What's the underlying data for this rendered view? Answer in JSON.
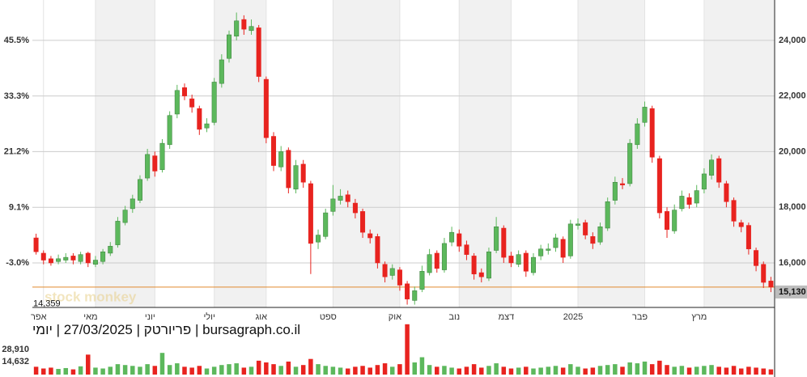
{
  "chart_data": {
    "type": "candlestick",
    "categories": [
      null,
      "אפר",
      null,
      null,
      null,
      null,
      null,
      null,
      "מאי",
      null,
      null,
      null,
      null,
      null,
      null,
      null,
      "יוני",
      null,
      null,
      null,
      null,
      null,
      null,
      null,
      "יולי",
      null,
      null,
      null,
      null,
      null,
      null,
      "אוג",
      null,
      null,
      null,
      null,
      null,
      null,
      null,
      null,
      "ספט",
      null,
      null,
      null,
      null,
      null,
      null,
      null,
      null,
      "אוק",
      null,
      null,
      null,
      null,
      null,
      null,
      null,
      "נוב",
      null,
      null,
      null,
      null,
      null,
      null,
      "דצמ",
      null,
      null,
      null,
      null,
      null,
      null,
      null,
      null,
      "2025",
      null,
      null,
      null,
      null,
      null,
      null,
      null,
      null,
      "פבר",
      null,
      null,
      null,
      null,
      null,
      null,
      null,
      "מרץ",
      null,
      null,
      null,
      null,
      null,
      null,
      null,
      null,
      null
    ],
    "open": [
      16900,
      16350,
      16150,
      16050,
      16100,
      16250,
      16050,
      16350,
      15950,
      16050,
      16350,
      16650,
      17450,
      17950,
      18250,
      19050,
      19850,
      19350,
      20250,
      21350,
      22300,
      21900,
      21550,
      20850,
      21050,
      22450,
      23350,
      24150,
      24750,
      24350,
      24450,
      22600,
      20550,
      19450,
      20050,
      18650,
      19550,
      18850,
      16750,
      16950,
      17850,
      18250,
      18450,
      18150,
      17850,
      17050,
      16950,
      15950,
      15550,
      15750,
      15250,
      14650,
      15050,
      15650,
      16350,
      15750,
      16750,
      17050,
      16650,
      16250,
      15650,
      15450,
      16450,
      17250,
      16250,
      15950,
      16350,
      15650,
      16250,
      16450,
      16550,
      16850,
      16250,
      17350,
      17450,
      16950,
      16750,
      17250,
      18250,
      18850,
      18850,
      20250,
      21050,
      21550,
      19750,
      17850,
      17150,
      17950,
      18350,
      18150,
      18650,
      19150,
      19750,
      18850,
      18250,
      17450,
      17350,
      16450,
      15950,
      15350
    ],
    "high": [
      17050,
      16450,
      16250,
      16300,
      16350,
      16350,
      16400,
      16400,
      16250,
      16500,
      16750,
      17650,
      18050,
      18450,
      19150,
      20100,
      20000,
      20450,
      21450,
      22400,
      22450,
      22050,
      21650,
      21200,
      22650,
      23500,
      24350,
      25000,
      24900,
      24750,
      24550,
      22700,
      20700,
      20200,
      20150,
      19700,
      19700,
      18950,
      17200,
      17950,
      18800,
      18650,
      18600,
      18300,
      17950,
      17200,
      17050,
      16050,
      15950,
      15850,
      15350,
      15150,
      15900,
      16500,
      16450,
      16900,
      17300,
      17200,
      16800,
      16350,
      15800,
      16550,
      17650,
      17350,
      16400,
      16450,
      16450,
      16350,
      16650,
      16700,
      17050,
      16950,
      17550,
      17600,
      17550,
      17100,
      17450,
      18350,
      19100,
      19050,
      20450,
      21200,
      21800,
      21650,
      19850,
      18000,
      18100,
      18600,
      18500,
      18800,
      19400,
      19900,
      19850,
      18950,
      18350,
      17550,
      17450,
      16550,
      16050,
      15500
    ],
    "low": [
      16300,
      15950,
      15900,
      15950,
      16000,
      15950,
      15950,
      15850,
      15850,
      15950,
      16250,
      16550,
      17350,
      17800,
      18150,
      18950,
      19100,
      19250,
      20100,
      21200,
      21850,
      21400,
      20600,
      20700,
      20950,
      22300,
      23200,
      24000,
      24200,
      24200,
      22500,
      20300,
      19300,
      19300,
      18500,
      18500,
      18700,
      15600,
      16500,
      16850,
      17700,
      18100,
      18000,
      17600,
      16900,
      16700,
      15800,
      15300,
      15400,
      15000,
      14500,
      14500,
      14950,
      15550,
      15650,
      15650,
      16600,
      16400,
      16100,
      15400,
      15300,
      15350,
      16350,
      16000,
      15850,
      15850,
      15500,
      15550,
      16100,
      16300,
      16400,
      16000,
      16150,
      17200,
      16850,
      16500,
      16650,
      17150,
      18100,
      18650,
      18750,
      20100,
      20900,
      19600,
      17600,
      16900,
      17050,
      17850,
      17950,
      18000,
      18500,
      19000,
      18700,
      18000,
      17300,
      17100,
      16300,
      15700,
      15100,
      14950
    ],
    "close": [
      16400,
      16100,
      16000,
      16150,
      16200,
      16100,
      16300,
      16000,
      16100,
      16400,
      16600,
      17500,
      17900,
      18300,
      19000,
      19900,
      19300,
      20300,
      21300,
      22200,
      22000,
      21600,
      20800,
      21000,
      22500,
      23300,
      24200,
      24700,
      24400,
      24500,
      22700,
      20500,
      19500,
      20000,
      18700,
      19500,
      18900,
      16700,
      17000,
      17800,
      18300,
      18400,
      18200,
      17800,
      17100,
      16900,
      16000,
      15500,
      15800,
      15200,
      14700,
      15000,
      15700,
      16300,
      15800,
      16700,
      17100,
      16600,
      16300,
      15600,
      15500,
      16400,
      17300,
      16200,
      16000,
      16300,
      15700,
      16200,
      16500,
      16500,
      16900,
      16200,
      17400,
      17400,
      17000,
      16700,
      17300,
      18200,
      18900,
      18800,
      20300,
      21000,
      21600,
      19800,
      17800,
      17200,
      17900,
      18400,
      18100,
      18600,
      19200,
      19700,
      18900,
      18200,
      17500,
      17300,
      16500,
      15900,
      15300,
      15130
    ],
    "volume": [
      9000,
      7000,
      8000,
      6500,
      7500,
      6000,
      9500,
      23000,
      8000,
      7000,
      9000,
      12000,
      11000,
      10000,
      9000,
      12000,
      10000,
      25000,
      11000,
      13000,
      9000,
      8000,
      10000,
      7000,
      9000,
      11000,
      12000,
      13000,
      8000,
      9000,
      16000,
      14000,
      12000,
      10000,
      15000,
      9000,
      11000,
      18000,
      12000,
      10000,
      9000,
      8000,
      7000,
      9000,
      10000,
      8000,
      11000,
      13000,
      9000,
      12000,
      58000,
      14000,
      20000,
      11000,
      9000,
      10000,
      8000,
      7000,
      9000,
      12000,
      8000,
      10000,
      13000,
      9000,
      7000,
      8000,
      9000,
      7000,
      8000,
      9000,
      10000,
      8000,
      12000,
      9000,
      7000,
      8000,
      10000,
      11000,
      12000,
      9000,
      14000,
      13000,
      15000,
      12000,
      16000,
      11000,
      9000,
      10000,
      8000,
      9000,
      10000,
      11000,
      9000,
      8000,
      10000,
      7000,
      9000,
      8000,
      7000,
      6000
    ],
    "up_color": "#5cb85c",
    "down_color": "#e8231f",
    "last_color": "#e08a2c",
    "ylim": [
      14400,
      25450
    ],
    "yticks": [
      {
        "value": 16000,
        "label": "16,000"
      },
      {
        "value": 18000,
        "label": "18,000"
      },
      {
        "value": 20000,
        "label": "20,000"
      },
      {
        "value": 22000,
        "label": "22,000"
      },
      {
        "value": 24000,
        "label": "24,000"
      }
    ],
    "y2lim": [
      -12.7,
      54.3
    ],
    "y2ticks": [
      {
        "value": -3.0,
        "label": "-3.0%"
      },
      {
        "value": 9.1,
        "label": "9.1%"
      },
      {
        "value": 21.2,
        "label": "21.2%"
      },
      {
        "value": 33.3,
        "label": "33.3%"
      },
      {
        "value": 45.5,
        "label": "45.5%"
      }
    ],
    "volume_lim": [
      0,
      58750
    ],
    "volume_ticks": [
      {
        "value": 14632,
        "label": "14,632"
      },
      {
        "value": 28910,
        "label": "28,910"
      }
    ],
    "last_price": {
      "value": 15130,
      "label": "15,130"
    },
    "low_marker": {
      "value": 14359,
      "label": "14,359"
    },
    "caption": "bursagraph.co.il | פריורטק | 27/03/2025 | יומי",
    "watermark": "stock monkey"
  }
}
